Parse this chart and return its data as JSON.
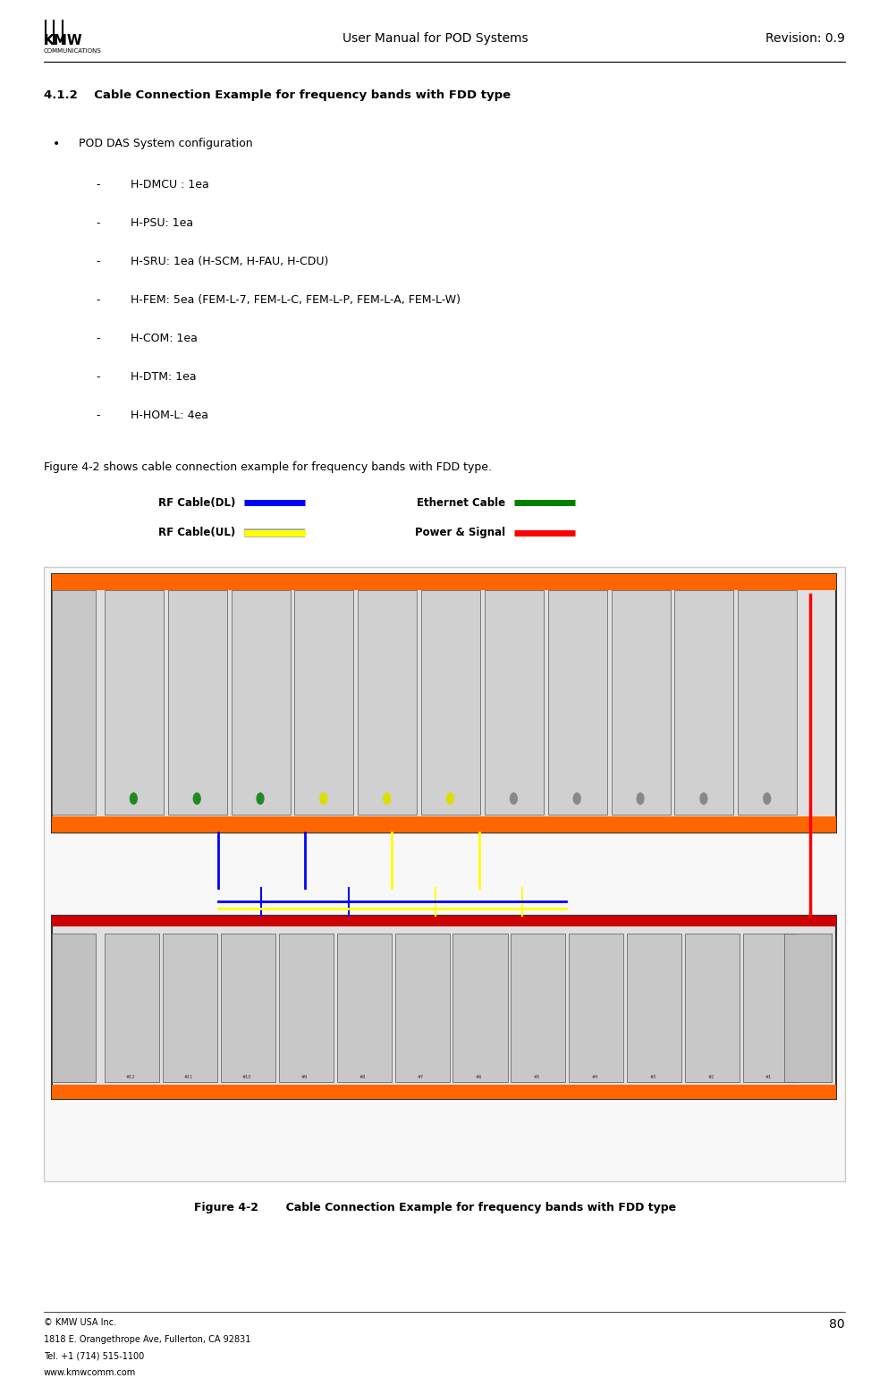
{
  "page_width": 9.74,
  "page_height": 15.41,
  "dpi": 100,
  "bg_color": "#ffffff",
  "header": {
    "title": "User Manual for POD Systems",
    "revision": "Revision: 0.9",
    "logo_text": "KMW\nCOMMUNICATIONS",
    "page_num": "80"
  },
  "section_title": "4.1.2    Cable Connection Example for frequency bands with FDD type",
  "bullet_main": "POD DAS System configuration",
  "bullet_items": [
    "H-DMCU : 1ea",
    "H-PSU: 1ea",
    "H-SRU: 1ea (H-SCM, H-FAU, H-CDU)",
    "H-FEM: 5ea (FEM-L-7, FEM-L-C, FEM-L-P, FEM-L-A, FEM-L-W)",
    "H-COM: 1ea",
    "H-DTM: 1ea",
    "H-HOM-L: 4ea"
  ],
  "body_text": "Figure 4-2 shows cable connection example for frequency bands with FDD type.",
  "legend": {
    "rf_dl_label": "RF Cable(DL)",
    "rf_dl_color": "#0000ff",
    "ethernet_label": "Ethernet Cable",
    "ethernet_color": "#008000",
    "rf_ul_label": "RF Cable(UL)",
    "rf_ul_color": "#ffff00",
    "power_label": "Power & Signal",
    "power_color": "#ff0000"
  },
  "figure_caption": "Figure 4-2       Cable Connection Example for frequency bands with FDD type",
  "footer": {
    "line1": "© KMW USA Inc.",
    "line2": "1818 E. Orangethrope Ave, Fullerton, CA 92831",
    "line3": "Tel. +1 (714) 515-1100",
    "line4": "www.kmwcomm.com",
    "page_num": "80"
  }
}
